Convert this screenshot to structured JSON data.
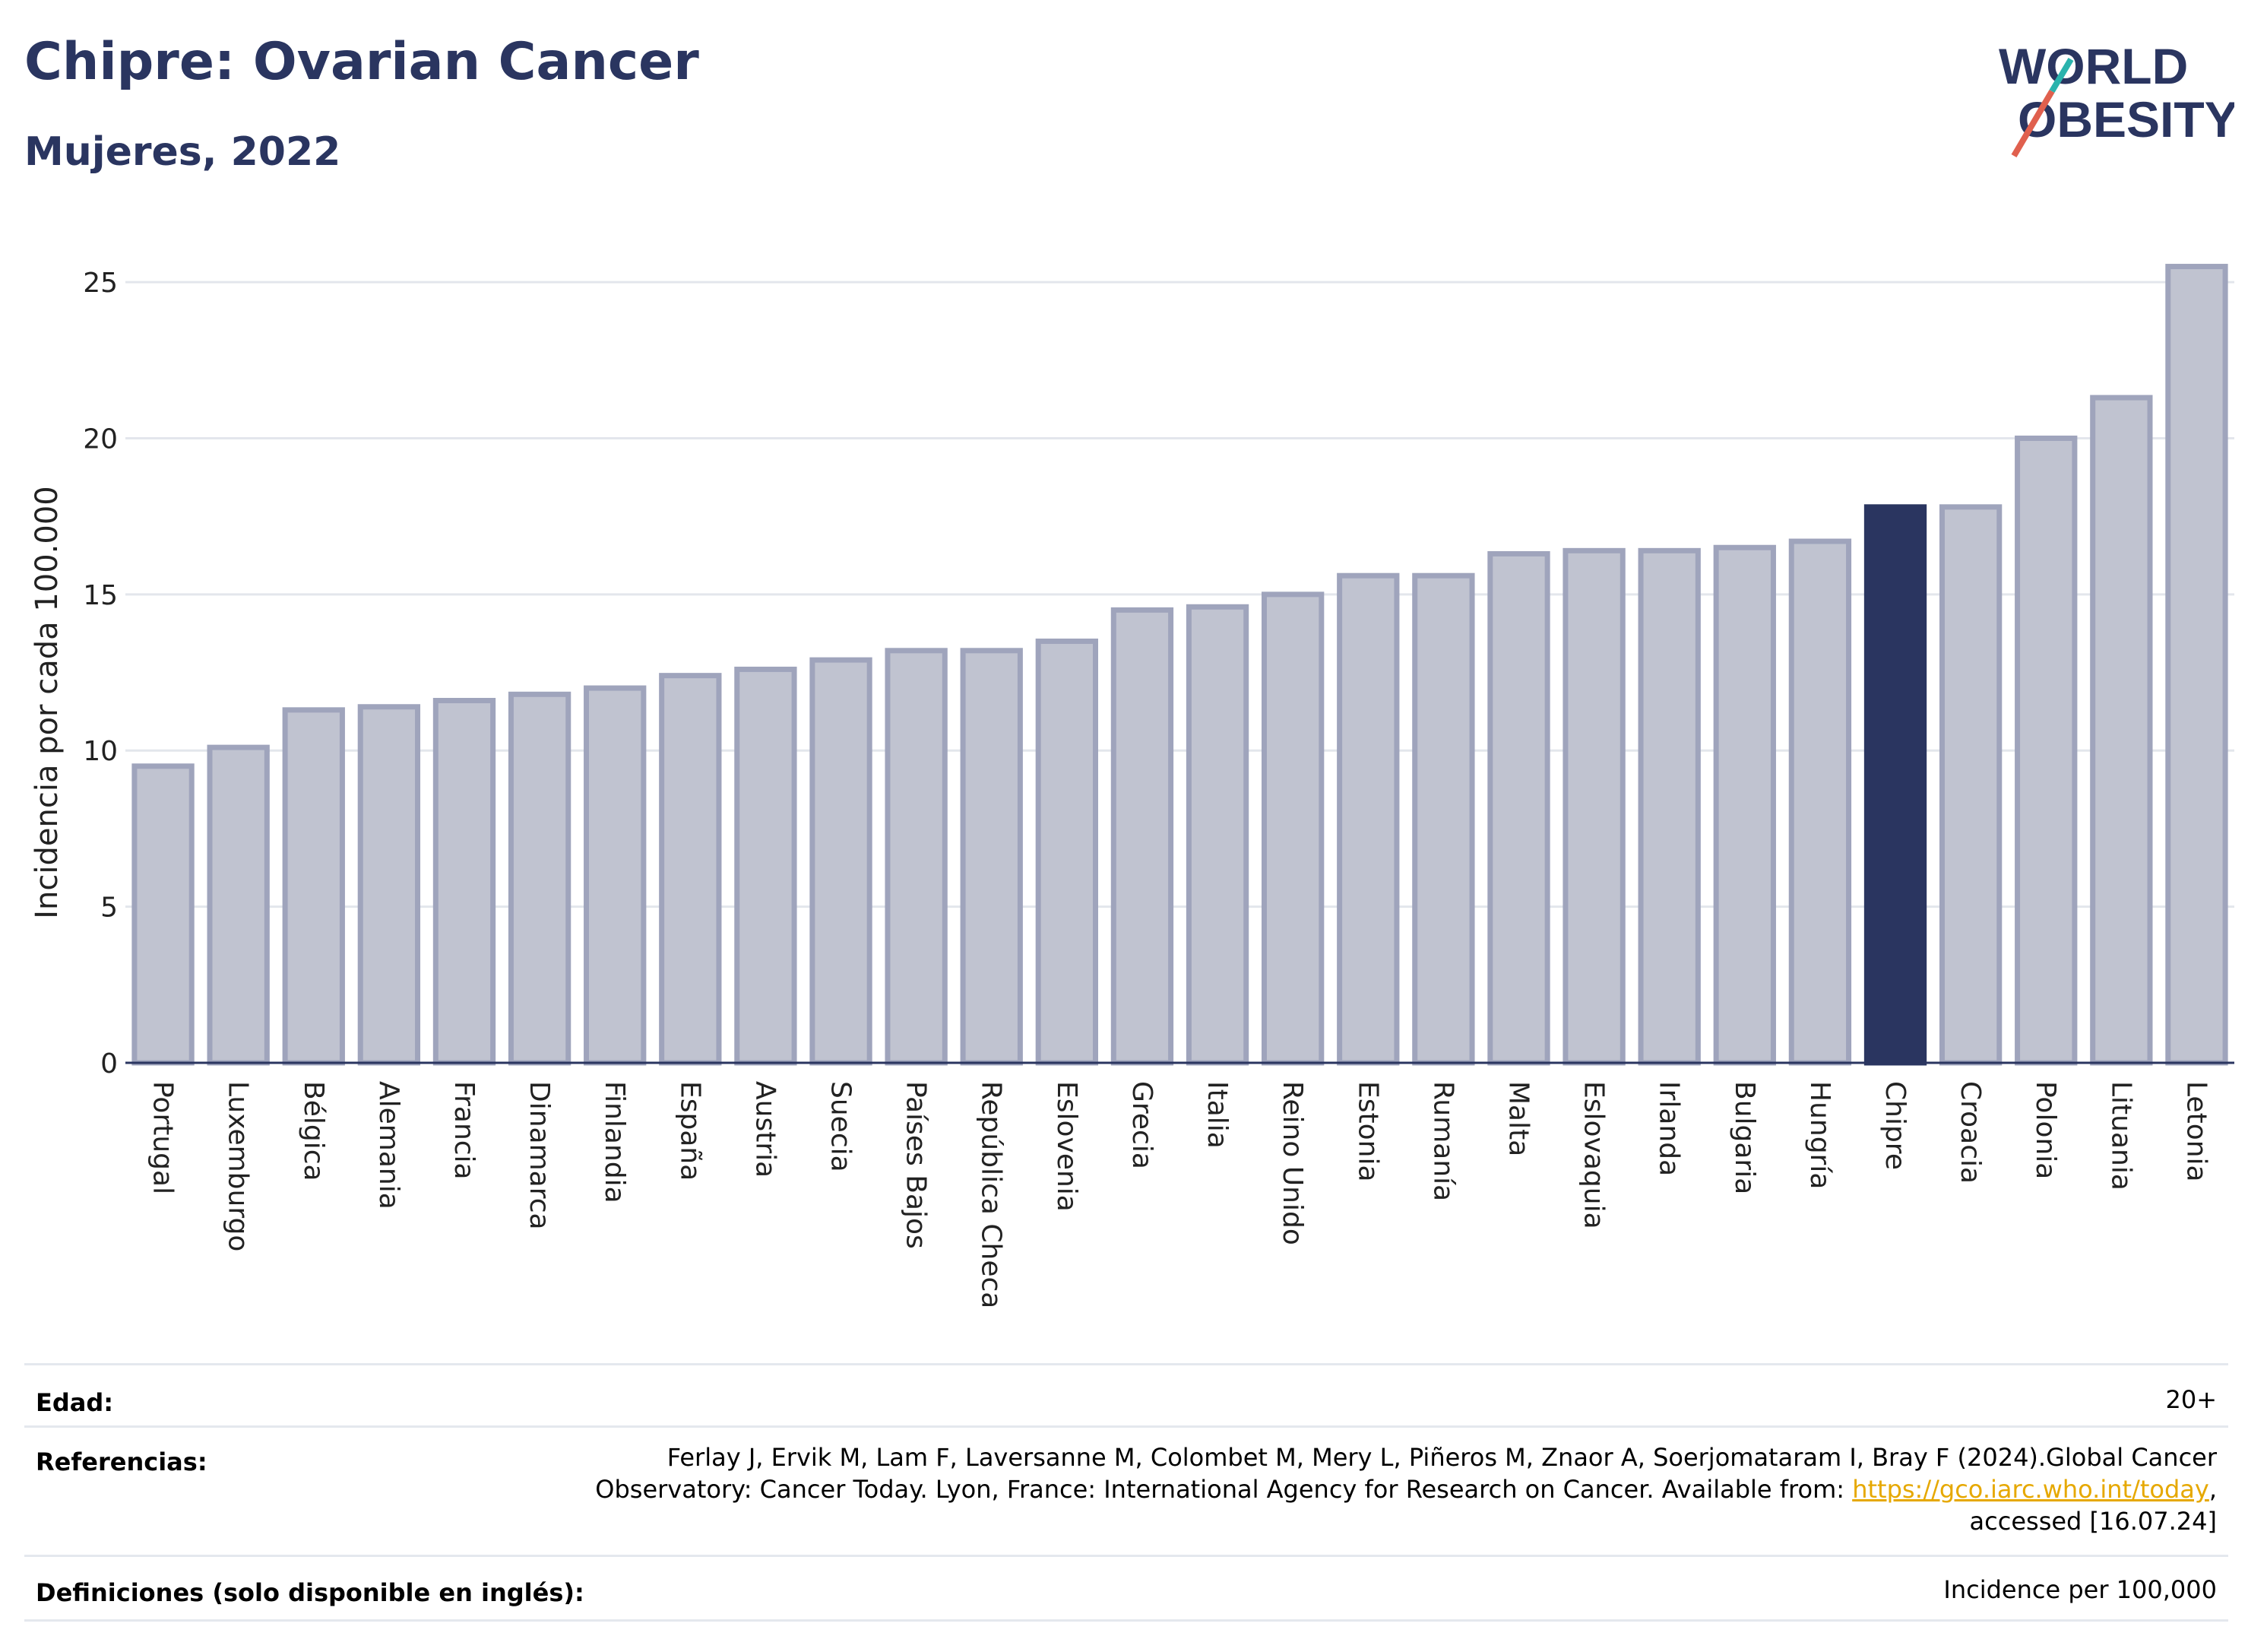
{
  "header": {
    "title": "Chipre: Ovarian Cancer",
    "subtitle": "Mujeres, 2022"
  },
  "logo": {
    "line1": "WORLD",
    "line2": "OBESITY",
    "colors": {
      "text": "#2a3560",
      "slash_red": "#e0604e",
      "slash_teal": "#2ab3ad"
    }
  },
  "chart_data": {
    "type": "bar",
    "categories": [
      "Portugal",
      "Luxemburgo",
      "Bélgica",
      "Alemania",
      "Francia",
      "Dinamarca",
      "Finlandia",
      "España",
      "Austria",
      "Suecia",
      "Países Bajos",
      "República Checa",
      "Eslovenia",
      "Grecia",
      "Italia",
      "Reino Unido",
      "Estonia",
      "Rumanía",
      "Malta",
      "Eslovaquia",
      "Irlanda",
      "Bulgaria",
      "Hungría",
      "Chipre",
      "Croacia",
      "Polonia",
      "Lituania",
      "Letonia"
    ],
    "values": [
      9.5,
      10.1,
      11.3,
      11.4,
      11.6,
      11.8,
      12.0,
      12.4,
      12.6,
      12.9,
      13.2,
      13.2,
      13.5,
      14.5,
      14.6,
      15.0,
      15.6,
      15.6,
      16.3,
      16.4,
      16.4,
      16.5,
      16.7,
      17.8,
      17.8,
      20.0,
      21.3,
      25.5
    ],
    "highlight": "Chipre",
    "ylabel": "Incidencia por cada 100.000",
    "xlabel": "",
    "ylim": [
      0,
      26
    ],
    "yticks": [
      0,
      5,
      10,
      15,
      20,
      25
    ],
    "grid": true,
    "colors": {
      "bar": "#c0c3d0",
      "bar_border": "#9fa4bc",
      "highlight": "#2a3560",
      "grid": "#e3e6ec"
    }
  },
  "footer": {
    "age_label": "Edad:",
    "age_value": "20+",
    "refs_label": "Referencias:",
    "refs_line1": "Ferlay J, Ervik M, Lam F, Laversanne M, Colombet M, Mery L, Piñeros M, Znaor A, Soerjomataram I, Bray F (2024).Global Cancer",
    "refs_line2_pre": "Observatory: Cancer Today. Lyon, France: International Agency for Research on Cancer. Available from: ",
    "refs_link": "https://gco.iarc.who.int/today",
    "refs_line2_post": ",",
    "refs_line3": "accessed [16.07.24]",
    "defs_label": "Definiciones (solo disponible en inglés):",
    "defs_value": "Incidence per 100,000"
  }
}
